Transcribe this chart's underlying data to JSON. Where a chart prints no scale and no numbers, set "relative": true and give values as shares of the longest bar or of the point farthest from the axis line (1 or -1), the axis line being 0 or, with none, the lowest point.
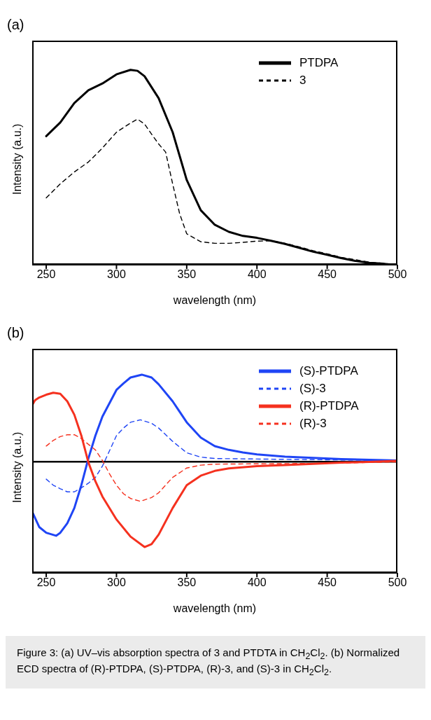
{
  "chart_data": [
    {
      "type": "line",
      "title": "(a)",
      "xlabel": "wavelength (nm)",
      "ylabel": "Intensity (a.u.)",
      "relative": true,
      "xlim": [
        240,
        500
      ],
      "xticks": [
        250,
        300,
        350,
        400,
        450,
        500
      ],
      "grid": false,
      "legend": "top right",
      "marker": "none",
      "series": [
        {
          "name": "PTDPA",
          "color": "#000000",
          "line_style": "solid",
          "x": [
            250,
            260,
            270,
            280,
            290,
            300,
            310,
            315,
            320,
            330,
            340,
            345,
            350,
            360,
            370,
            380,
            390,
            400,
            410,
            420,
            430,
            440,
            450,
            460,
            470,
            480,
            490,
            495
          ],
          "values": [
            0.66,
            0.73,
            0.83,
            0.895,
            0.93,
            0.977,
            1.0,
            0.995,
            0.967,
            0.855,
            0.68,
            0.558,
            0.435,
            0.28,
            0.205,
            0.169,
            0.148,
            0.138,
            0.123,
            0.107,
            0.087,
            0.067,
            0.051,
            0.034,
            0.02,
            0.01,
            0.005,
            0
          ]
        },
        {
          "name": "3",
          "color": "#000000",
          "line_style": "dashed",
          "x": [
            250,
            260,
            270,
            280,
            290,
            300,
            310,
            315,
            320,
            325,
            330,
            335,
            340,
            345,
            350,
            360,
            370,
            380,
            390,
            400,
            410,
            420,
            430,
            440,
            450,
            460,
            470,
            480,
            490,
            495
          ],
          "values": [
            0.343,
            0.415,
            0.476,
            0.527,
            0.599,
            0.68,
            0.727,
            0.747,
            0.722,
            0.67,
            0.62,
            0.578,
            0.415,
            0.261,
            0.159,
            0.118,
            0.11,
            0.11,
            0.115,
            0.121,
            0.123,
            0.11,
            0.092,
            0.072,
            0.056,
            0.038,
            0.026,
            0.013,
            0.007,
            0.005
          ]
        }
      ]
    },
    {
      "type": "line",
      "title": "(b)",
      "xlabel": "wavelength (nm)",
      "ylabel": "Intensity (a.u.)",
      "relative": true,
      "xlim": [
        240,
        500
      ],
      "xticks": [
        250,
        300,
        350,
        400,
        450,
        500
      ],
      "grid": false,
      "legend": "top right",
      "marker": "none",
      "ref_lines": [
        {
          "axis": "y",
          "value": 0,
          "color": "#000000",
          "line_style": "solid"
        }
      ],
      "series": [
        {
          "name": "(S)-PTDPA",
          "color": "#1f45f5",
          "line_style": "solid",
          "x": [
            240,
            245,
            250,
            257,
            260,
            265,
            270,
            275,
            280,
            285,
            290,
            300,
            305,
            310,
            318,
            325,
            330,
            340,
            350,
            360,
            370,
            380,
            390,
            400,
            420,
            440,
            460,
            480,
            500
          ],
          "values": [
            -0.575,
            -0.75,
            -0.816,
            -0.85,
            -0.816,
            -0.707,
            -0.532,
            -0.269,
            0.037,
            0.3,
            0.519,
            0.825,
            0.9,
            0.967,
            1.0,
            0.967,
            0.89,
            0.694,
            0.453,
            0.278,
            0.179,
            0.136,
            0.107,
            0.085,
            0.059,
            0.044,
            0.031,
            0.022,
            0.015
          ]
        },
        {
          "name": "(S)-3",
          "color": "#1f45f5",
          "line_style": "dashed",
          "x": [
            250,
            255,
            260,
            265,
            270,
            275,
            280,
            285,
            290,
            295,
            300,
            305,
            310,
            317,
            325,
            330,
            340,
            350,
            360,
            370,
            400,
            450,
            500
          ],
          "values": [
            -0.2,
            -0.27,
            -0.31,
            -0.346,
            -0.346,
            -0.3,
            -0.247,
            -0.18,
            -0.05,
            0.125,
            0.3,
            0.387,
            0.453,
            0.481,
            0.442,
            0.387,
            0.234,
            0.103,
            0.053,
            0.037,
            0.031,
            0.022,
            0.015
          ]
        },
        {
          "name": "(R)-PTDPA",
          "color": "#f5311f",
          "line_style": "solid",
          "x": [
            240,
            242,
            245,
            250,
            255,
            260,
            265,
            270,
            275,
            280,
            285,
            290,
            300,
            310,
            320,
            325,
            330,
            340,
            350,
            360,
            370,
            380,
            400,
            420,
            440,
            460,
            480,
            500
          ],
          "values": [
            0.65,
            0.705,
            0.737,
            0.77,
            0.792,
            0.78,
            0.694,
            0.54,
            0.3,
            -0.007,
            -0.225,
            -0.4,
            -0.663,
            -0.86,
            -0.98,
            -0.947,
            -0.838,
            -0.532,
            -0.269,
            -0.16,
            -0.105,
            -0.077,
            -0.05,
            -0.039,
            -0.024,
            -0.011,
            -0.002,
            0.011
          ]
        },
        {
          "name": "(R)-3",
          "color": "#f5311f",
          "line_style": "dashed",
          "x": [
            250,
            255,
            260,
            265,
            270,
            275,
            280,
            285,
            290,
            295,
            300,
            305,
            310,
            317,
            325,
            330,
            340,
            350,
            360,
            370,
            400,
            450,
            500
          ],
          "values": [
            0.18,
            0.245,
            0.289,
            0.31,
            0.31,
            0.267,
            0.2,
            0.136,
            0.015,
            -0.138,
            -0.27,
            -0.368,
            -0.422,
            -0.455,
            -0.411,
            -0.357,
            -0.18,
            -0.072,
            -0.039,
            -0.028,
            -0.024,
            -0.018,
            -0.002
          ]
        }
      ],
      "annotations": [
        "Figure 3: (a) UV–vis absorption spectra of 3 and PTDTA in CH$_{2}$Cl$_{2}$. (b) Normalized ECD spectra of (R)-PTDPA, (S)-PTDPA, (R)-3, and (S)-3 in CH$_{2}$Cl$_{2}$."
      ]
    }
  ]
}
